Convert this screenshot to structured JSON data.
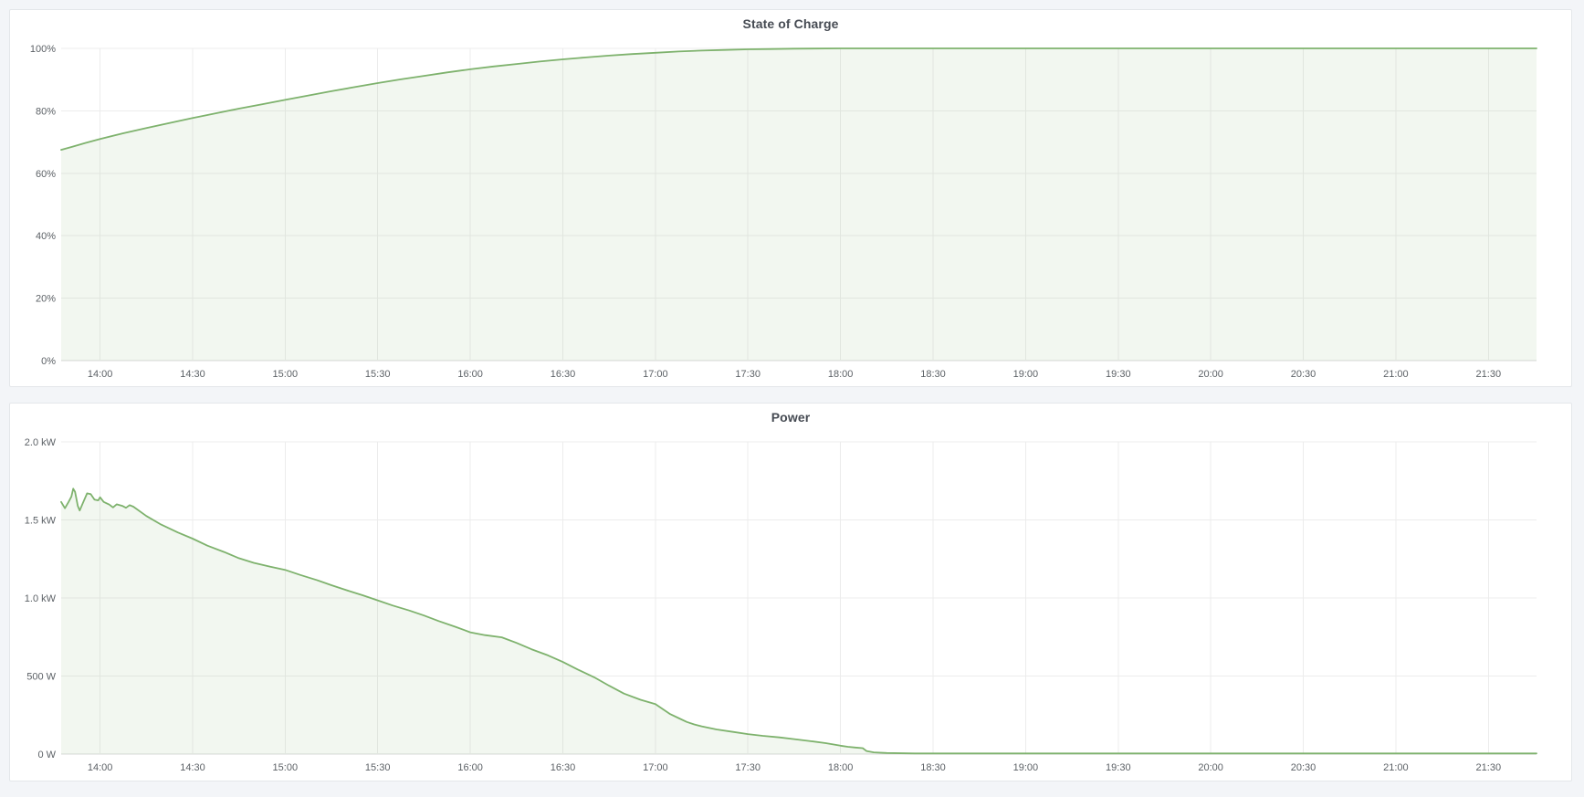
{
  "theme": {
    "page_bg": "#f3f5f8",
    "panel_bg": "#ffffff",
    "panel_border": "#e4e7ea",
    "title_text": "#464b53",
    "tick_text": "#5c6166",
    "grid": "#ececec",
    "axis_line": "#d8d9da",
    "line_green": "#7eb26d",
    "fill_green": "rgba(126,178,109,0.10)"
  },
  "chart_data": [
    {
      "type": "area",
      "title": "State of Charge",
      "xlabel": "",
      "ylabel": "",
      "legend": "none",
      "grid": true,
      "x_range": [
        13.79,
        21.76
      ],
      "x_ticks": {
        "values": [
          14,
          14.5,
          15,
          15.5,
          16,
          16.5,
          17,
          17.5,
          18,
          18.5,
          19,
          19.5,
          20,
          20.5,
          21,
          21.5
        ],
        "labels": [
          "14:00",
          "14:30",
          "15:00",
          "15:30",
          "16:00",
          "16:30",
          "17:00",
          "17:30",
          "18:00",
          "18:30",
          "19:00",
          "19:30",
          "20:00",
          "20:30",
          "21:00",
          "21:30"
        ]
      },
      "y_range": [
        0,
        100
      ],
      "y_ticks": {
        "values": [
          0,
          20,
          40,
          60,
          80,
          100
        ],
        "labels": [
          "0%",
          "20%",
          "40%",
          "60%",
          "80%",
          "100%"
        ]
      },
      "series": [
        {
          "color": "#7eb26d",
          "fill": "rgba(126,178,109,0.10)",
          "points": [
            [
              13.79,
              67.5
            ],
            [
              13.85,
              68.5
            ],
            [
              13.92,
              69.7
            ],
            [
              14.0,
              71.0
            ],
            [
              14.125,
              72.8
            ],
            [
              14.25,
              74.5
            ],
            [
              14.375,
              76.1
            ],
            [
              14.5,
              77.7
            ],
            [
              14.625,
              79.2
            ],
            [
              14.75,
              80.7
            ],
            [
              14.875,
              82.1
            ],
            [
              15.0,
              83.5
            ],
            [
              15.125,
              84.9
            ],
            [
              15.25,
              86.3
            ],
            [
              15.375,
              87.6
            ],
            [
              15.5,
              88.9
            ],
            [
              15.625,
              90.1
            ],
            [
              15.75,
              91.2
            ],
            [
              15.875,
              92.3
            ],
            [
              16.0,
              93.3
            ],
            [
              16.125,
              94.2
            ],
            [
              16.25,
              95.0
            ],
            [
              16.375,
              95.8
            ],
            [
              16.5,
              96.5
            ],
            [
              16.625,
              97.1
            ],
            [
              16.75,
              97.7
            ],
            [
              16.875,
              98.2
            ],
            [
              17.0,
              98.6
            ],
            [
              17.125,
              99.0
            ],
            [
              17.25,
              99.3
            ],
            [
              17.375,
              99.5
            ],
            [
              17.5,
              99.7
            ],
            [
              17.625,
              99.8
            ],
            [
              17.75,
              99.9
            ],
            [
              18.0,
              100
            ],
            [
              18.5,
              100
            ],
            [
              19.0,
              100
            ],
            [
              20.0,
              100
            ],
            [
              21.0,
              100
            ],
            [
              21.76,
              100
            ]
          ]
        }
      ]
    },
    {
      "type": "area",
      "title": "Power",
      "xlabel": "",
      "ylabel": "",
      "legend": "none",
      "grid": true,
      "x_range": [
        13.79,
        21.76
      ],
      "x_ticks": {
        "values": [
          14,
          14.5,
          15,
          15.5,
          16,
          16.5,
          17,
          17.5,
          18,
          18.5,
          19,
          19.5,
          20,
          20.5,
          21,
          21.5
        ],
        "labels": [
          "14:00",
          "14:30",
          "15:00",
          "15:30",
          "16:00",
          "16:30",
          "17:00",
          "17:30",
          "18:00",
          "18:30",
          "19:00",
          "19:30",
          "20:00",
          "20:30",
          "21:00",
          "21:30"
        ]
      },
      "y_range": [
        0,
        2000
      ],
      "y_ticks": {
        "values": [
          0,
          500,
          1000,
          1500,
          2000
        ],
        "labels": [
          "0 W",
          "500 W",
          "1.0 kW",
          "1.5 kW",
          "2.0 kW"
        ]
      },
      "series": [
        {
          "color": "#7eb26d",
          "fill": "rgba(126,178,109,0.10)",
          "points": [
            [
              13.79,
              1615
            ],
            [
              13.81,
              1575
            ],
            [
              13.83,
              1615
            ],
            [
              13.845,
              1650
            ],
            [
              13.855,
              1700
            ],
            [
              13.865,
              1680
            ],
            [
              13.88,
              1590
            ],
            [
              13.89,
              1560
            ],
            [
              13.91,
              1615
            ],
            [
              13.93,
              1670
            ],
            [
              13.95,
              1665
            ],
            [
              13.97,
              1630
            ],
            [
              13.99,
              1625
            ],
            [
              14.0,
              1645
            ],
            [
              14.02,
              1615
            ],
            [
              14.05,
              1598
            ],
            [
              14.07,
              1580
            ],
            [
              14.09,
              1600
            ],
            [
              14.12,
              1590
            ],
            [
              14.14,
              1578
            ],
            [
              14.16,
              1595
            ],
            [
              14.18,
              1585
            ],
            [
              14.25,
              1525
            ],
            [
              14.33,
              1470
            ],
            [
              14.42,
              1420
            ],
            [
              14.5,
              1380
            ],
            [
              14.58,
              1335
            ],
            [
              14.67,
              1295
            ],
            [
              14.75,
              1255
            ],
            [
              14.83,
              1225
            ],
            [
              14.92,
              1200
            ],
            [
              15.0,
              1180
            ],
            [
              15.08,
              1148
            ],
            [
              15.17,
              1115
            ],
            [
              15.25,
              1082
            ],
            [
              15.33,
              1050
            ],
            [
              15.42,
              1017
            ],
            [
              15.5,
              985
            ],
            [
              15.58,
              952
            ],
            [
              15.67,
              920
            ],
            [
              15.75,
              888
            ],
            [
              15.83,
              852
            ],
            [
              15.92,
              815
            ],
            [
              16.0,
              780
            ],
            [
              16.08,
              762
            ],
            [
              16.17,
              748
            ],
            [
              16.25,
              712
            ],
            [
              16.33,
              672
            ],
            [
              16.42,
              632
            ],
            [
              16.5,
              590
            ],
            [
              16.58,
              542
            ],
            [
              16.67,
              492
            ],
            [
              16.75,
              438
            ],
            [
              16.83,
              388
            ],
            [
              16.92,
              348
            ],
            [
              17.0,
              320
            ],
            [
              17.04,
              288
            ],
            [
              17.08,
              256
            ],
            [
              17.13,
              228
            ],
            [
              17.17,
              206
            ],
            [
              17.21,
              190
            ],
            [
              17.25,
              178
            ],
            [
              17.33,
              158
            ],
            [
              17.42,
              142
            ],
            [
              17.5,
              128
            ],
            [
              17.58,
              117
            ],
            [
              17.67,
              107
            ],
            [
              17.75,
              96
            ],
            [
              17.83,
              84
            ],
            [
              17.92,
              70
            ],
            [
              18.0,
              54
            ],
            [
              18.04,
              47
            ],
            [
              18.08,
              42
            ],
            [
              18.12,
              38
            ],
            [
              18.14,
              20
            ],
            [
              18.18,
              11
            ],
            [
              18.25,
              7
            ],
            [
              18.4,
              4
            ],
            [
              19.0,
              4
            ],
            [
              20.0,
              4
            ],
            [
              21.0,
              4
            ],
            [
              21.76,
              4
            ]
          ]
        }
      ]
    }
  ]
}
